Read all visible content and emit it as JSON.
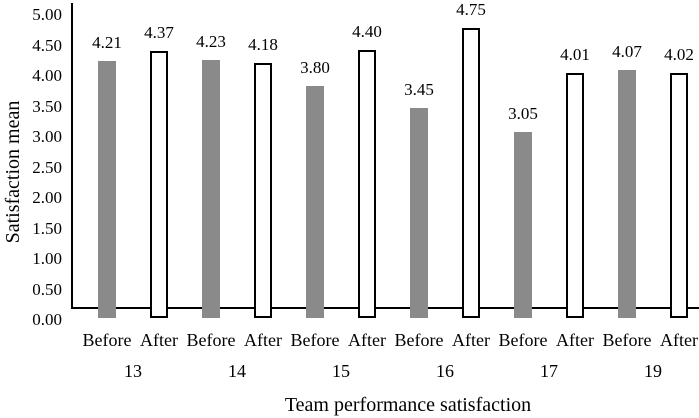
{
  "chart_data": {
    "type": "bar",
    "title": "",
    "xlabel": "Team performance satisfaction",
    "ylabel": "Satisfaction mean",
    "groups": [
      "13",
      "14",
      "15",
      "16",
      "17",
      "19"
    ],
    "series": [
      {
        "name": "Before",
        "values": [
          4.21,
          4.23,
          3.8,
          3.45,
          3.05,
          4.07
        ]
      },
      {
        "name": "After",
        "values": [
          4.37,
          4.18,
          4.4,
          4.75,
          4.01,
          4.02
        ]
      }
    ],
    "yticks": [
      "5.00",
      "4.50",
      "4.00",
      "3.50",
      "3.00",
      "2.50",
      "2.00",
      "1.50",
      "1.00",
      "0.50",
      "0.00"
    ],
    "ylim": [
      0,
      5
    ],
    "ytick_step": 0.5,
    "value_label_decimals": 2,
    "grid": "off",
    "legend": "none",
    "colors": {
      "before_fill": "#8a8a8a",
      "after_fill": "#ffffff",
      "after_border": "#000000",
      "axis": "#000000",
      "text": "#000000",
      "background": "#ffffff"
    }
  }
}
